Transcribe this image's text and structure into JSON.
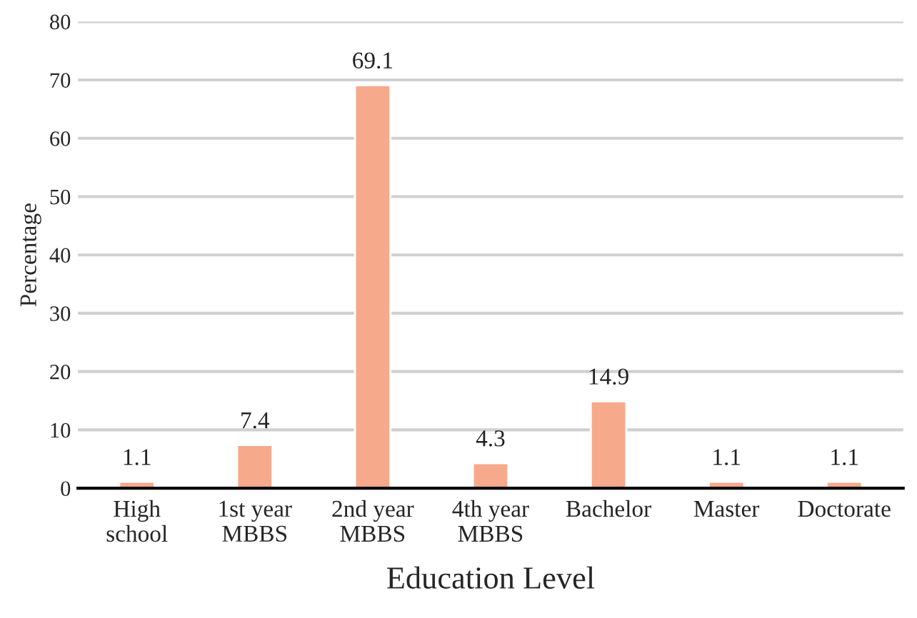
{
  "chart_data": {
    "type": "bar",
    "xlabel": "Education Level",
    "ylabel": "Percentage",
    "categories": [
      "High\nschool",
      "1st year\nMBBS",
      "2nd year\nMBBS",
      "4th year\nMBBS",
      "Bachelor",
      "Master",
      "Doctorate"
    ],
    "values": [
      1.1,
      7.4,
      69.1,
      4.3,
      14.9,
      1.1,
      1.1
    ],
    "color": "#f7a98c",
    "ylim": [
      0,
      80
    ],
    "yticks": [
      0,
      10,
      20,
      30,
      40,
      50,
      60,
      70,
      80
    ],
    "grid": "y",
    "data_labels": true
  }
}
